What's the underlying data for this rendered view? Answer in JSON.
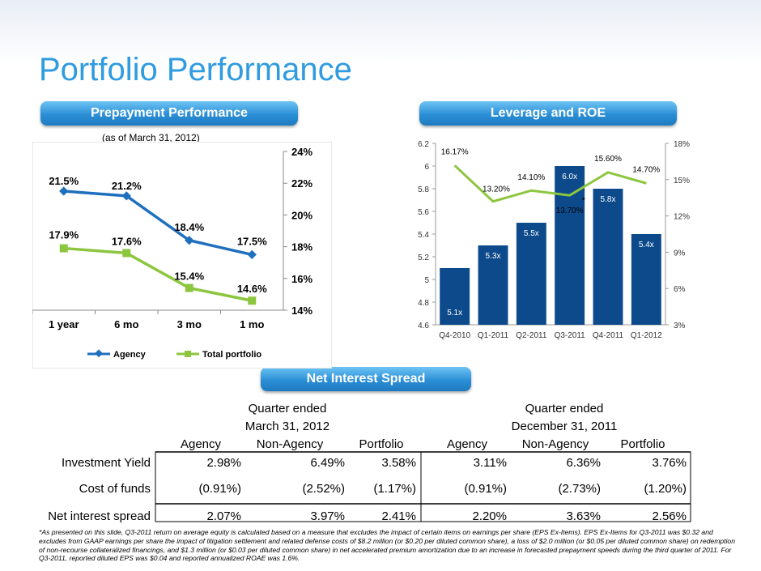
{
  "page": {
    "title": "Portfolio Performance",
    "section_prepay": "Prepayment Performance",
    "section_leverage": "Leverage and ROE",
    "section_spread": "Net Interest Spread",
    "prepay_note": "(as of March 31, 2012)",
    "footnote": "*As presented on this slide, Q3-2011 return on average equity is calculated based on a measure that excludes the impact of certain items on earnings per share (EPS Ex-Items). EPS Ex-Items for Q3-2011 was $0.32 and excludes from GAAP earnings per share the impact of litigation settlement and related defense costs of $8.2 million (or $0.20 per diluted common share), a loss of $2.0 million (or $0.05 per diluted common share) on redemption of non-recourse collateralized financings, and $1.3 million (or $0.03 per diluted common share) in net accelerated premium amortization due to an increase in forecasted prepayment speeds during the third quarter of 2011. For Q3-2011, reported diluted EPS was $0.04 and reported annualized ROAE was 1.6%."
  },
  "colors": {
    "agency": "#1f6fbf",
    "total": "#8cc63f",
    "bar": "#0d4a8c",
    "roe": "#8cc63f",
    "title": "#2f9be0"
  },
  "chart_data": [
    {
      "type": "line",
      "categories": [
        "1 year",
        "6 mo",
        "3 mo",
        "1 mo"
      ],
      "series": [
        {
          "name": "Agency",
          "values": [
            21.5,
            21.2,
            18.4,
            17.5
          ],
          "labels": [
            "21.5%",
            "21.2%",
            "18.4%",
            "17.5%"
          ]
        },
        {
          "name": "Total portfolio",
          "values": [
            17.9,
            17.6,
            15.4,
            14.6
          ],
          "labels": [
            "17.9%",
            "17.6%",
            "15.4%",
            "14.6%"
          ]
        }
      ],
      "ylim": [
        14,
        24
      ],
      "yticks": [
        "14%",
        "16%",
        "18%",
        "20%",
        "22%",
        "24%"
      ],
      "y_axis_side": "right",
      "legend": "bottom"
    },
    {
      "type": "bar",
      "categories": [
        "Q4-2010",
        "Q1-2011",
        "Q2-2011",
        "Q3-2011",
        "Q4-2011",
        "Q1-2012"
      ],
      "series": [
        {
          "values": [
            5.1,
            5.3,
            5.5,
            6.0,
            5.8,
            5.4
          ],
          "labels": [
            "5.1x",
            "5.3x",
            "5.5x",
            "6.0x",
            "5.8x",
            "5.4x"
          ],
          "axis": "left"
        },
        {
          "type": "line",
          "values": [
            16.17,
            13.2,
            14.1,
            13.7,
            15.6,
            14.7
          ],
          "labels": [
            "16.17%",
            "13.20%",
            "14.10%",
            "13.70%",
            "15.60%",
            "14.70%"
          ],
          "axis": "right"
        }
      ],
      "ylim": [
        4.6,
        6.2
      ],
      "yticks": [
        "4.6",
        "4.8",
        "5",
        "5.2",
        "5.4",
        "5.6",
        "5.8",
        "6",
        "6.2"
      ],
      "y2lim": [
        3,
        18
      ],
      "y2ticks": [
        "3%",
        "6%",
        "9%",
        "12%",
        "15%",
        "18%"
      ],
      "grid": false,
      "q3_marker": "*"
    }
  ],
  "spread_table": {
    "group1_line1": "Quarter ended",
    "group1_line2": "March 31, 2012",
    "group2_line1": "Quarter ended",
    "group2_line2": "December 31, 2011",
    "columns": [
      "Agency",
      "Non-Agency",
      "Portfolio",
      "Agency",
      "Non-Agency",
      "Portfolio"
    ],
    "rows": [
      {
        "label": "Investment Yield",
        "values": [
          "2.98%",
          "6.49%",
          "3.58%",
          "3.11%",
          "6.36%",
          "3.76%"
        ]
      },
      {
        "label": "Cost of funds",
        "values": [
          "(0.91%)",
          "(2.52%)",
          "(1.17%)",
          "(0.91%)",
          "(2.73%)",
          "(1.20%)"
        ]
      },
      {
        "label": "Net interest spread",
        "values": [
          "2.07%",
          "3.97%",
          "2.41%",
          "2.20%",
          "3.63%",
          "2.56%"
        ]
      }
    ]
  }
}
